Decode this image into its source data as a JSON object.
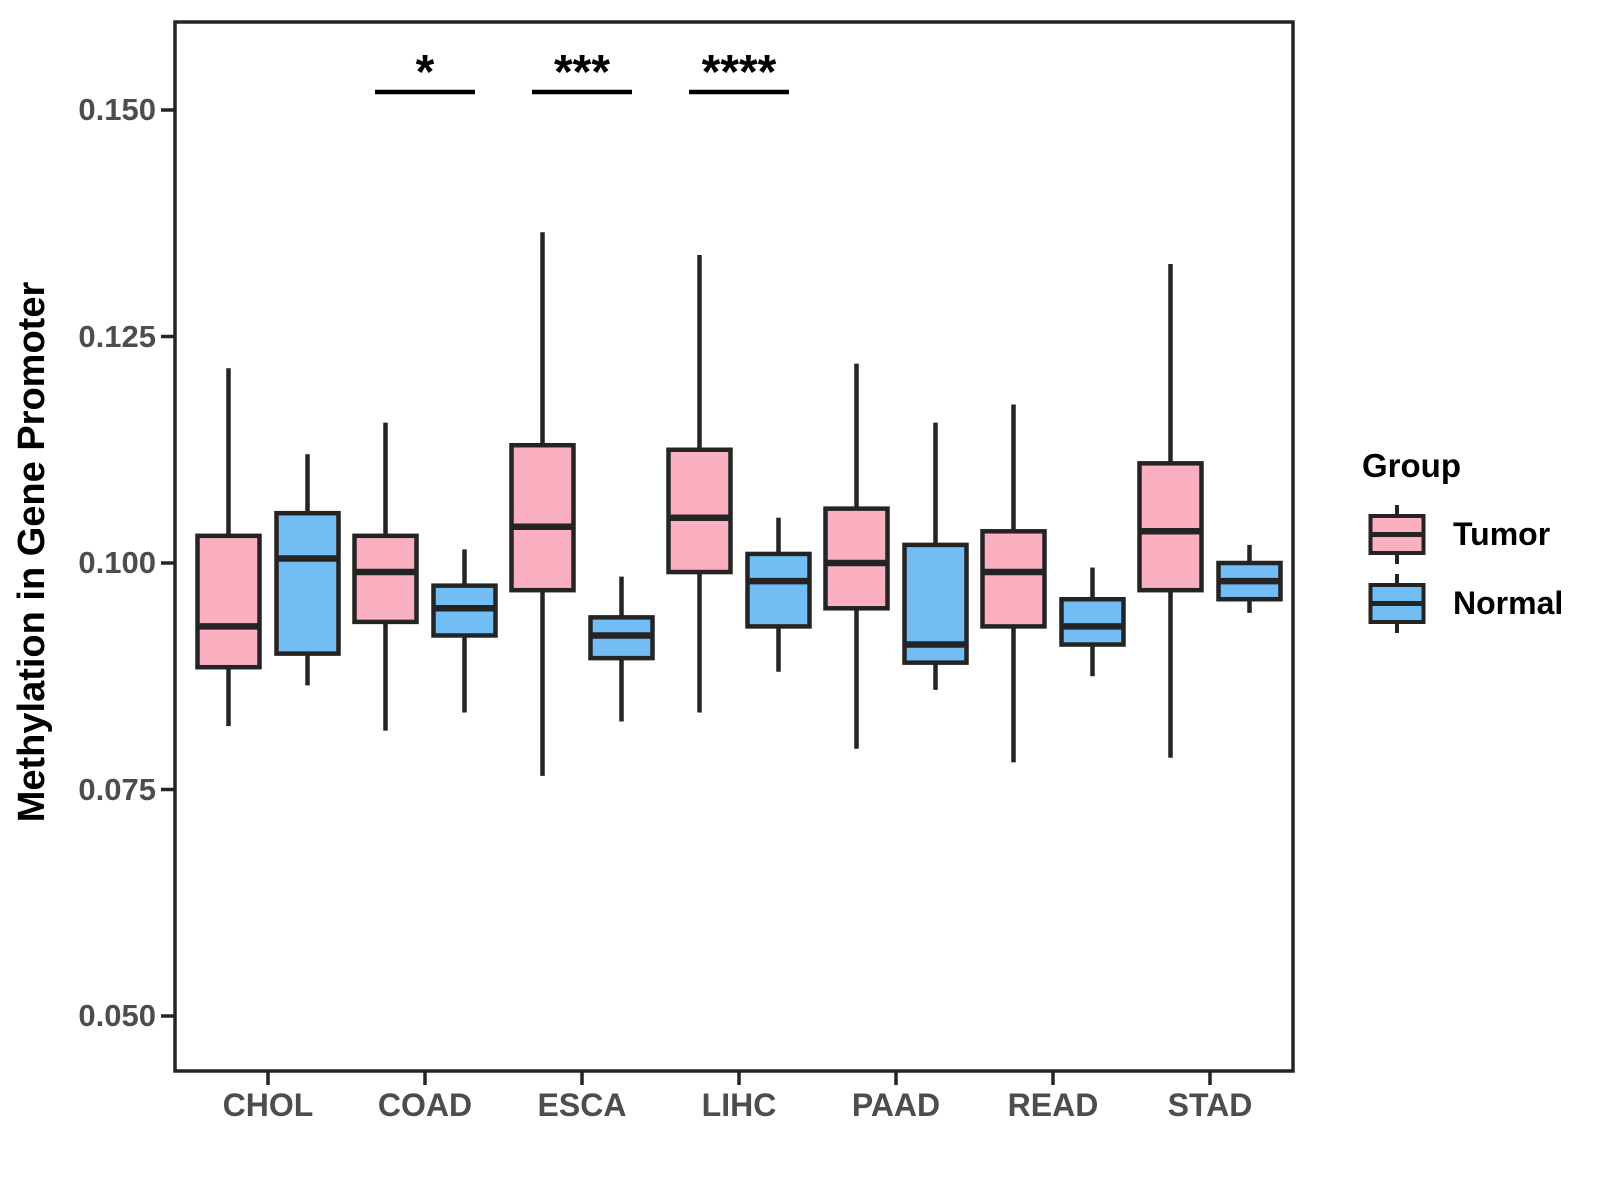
{
  "figure": {
    "background": "#ffffff",
    "stroke_color": "#242424",
    "axis_text_color": "#4d4d4d",
    "axis_title_color": "#000000"
  },
  "chart_data": {
    "type": "boxplot",
    "title": "",
    "xlabel": "",
    "ylabel": "Methylation in Gene Promoter",
    "grid": false,
    "legend_position": "right",
    "ylim": [
      0.044,
      0.16
    ],
    "y_ticks": [
      {
        "label": "0.150",
        "value": 0.15
      },
      {
        "label": "0.125",
        "value": 0.125
      },
      {
        "label": "0.100",
        "value": 0.1
      },
      {
        "label": "0.075",
        "value": 0.075
      },
      {
        "label": "0.050",
        "value": 0.05
      }
    ],
    "categories": [
      "CHOL",
      "COAD",
      "ESCA",
      "LIHC",
      "PAAD",
      "READ",
      "STAD"
    ],
    "series": [
      {
        "name": "Tumor",
        "fill": "#FBB0C2",
        "boxes": [
          {
            "category": "CHOL",
            "min": 0.082,
            "q1": 0.0885,
            "median": 0.093,
            "q3": 0.103,
            "max": 0.1215
          },
          {
            "category": "COAD",
            "min": 0.0815,
            "q1": 0.0935,
            "median": 0.099,
            "q3": 0.103,
            "max": 0.1155
          },
          {
            "category": "ESCA",
            "min": 0.0765,
            "q1": 0.097,
            "median": 0.104,
            "q3": 0.113,
            "max": 0.1365
          },
          {
            "category": "LIHC",
            "min": 0.0835,
            "q1": 0.099,
            "median": 0.105,
            "q3": 0.1125,
            "max": 0.134
          },
          {
            "category": "PAAD",
            "min": 0.0795,
            "q1": 0.095,
            "median": 0.1,
            "q3": 0.106,
            "max": 0.122
          },
          {
            "category": "READ",
            "min": 0.078,
            "q1": 0.093,
            "median": 0.099,
            "q3": 0.1035,
            "max": 0.1175
          },
          {
            "category": "STAD",
            "min": 0.0785,
            "q1": 0.097,
            "median": 0.1035,
            "q3": 0.111,
            "max": 0.133
          }
        ]
      },
      {
        "name": "Normal",
        "fill": "#72BEF4",
        "boxes": [
          {
            "category": "CHOL",
            "min": 0.0865,
            "q1": 0.09,
            "median": 0.1005,
            "q3": 0.1055,
            "max": 0.112
          },
          {
            "category": "COAD",
            "min": 0.0835,
            "q1": 0.092,
            "median": 0.095,
            "q3": 0.0975,
            "max": 0.1015
          },
          {
            "category": "ESCA",
            "min": 0.0825,
            "q1": 0.0895,
            "median": 0.092,
            "q3": 0.094,
            "max": 0.0985
          },
          {
            "category": "LIHC",
            "min": 0.088,
            "q1": 0.093,
            "median": 0.098,
            "q3": 0.101,
            "max": 0.105
          },
          {
            "category": "PAAD",
            "min": 0.086,
            "q1": 0.089,
            "median": 0.091,
            "q3": 0.102,
            "max": 0.1155
          },
          {
            "category": "READ",
            "min": 0.0875,
            "q1": 0.091,
            "median": 0.093,
            "q3": 0.096,
            "max": 0.0995
          },
          {
            "category": "STAD",
            "min": 0.0945,
            "q1": 0.096,
            "median": 0.098,
            "q3": 0.1,
            "max": 0.102
          }
        ]
      }
    ],
    "significance": [
      {
        "category": "COAD",
        "label": "*"
      },
      {
        "category": "ESCA",
        "label": "***"
      },
      {
        "category": "LIHC",
        "label": "****"
      }
    ],
    "legend": {
      "title": "Group",
      "items": [
        {
          "label": "Tumor",
          "fill": "#FBB0C2"
        },
        {
          "label": "Normal",
          "fill": "#72BEF4"
        }
      ]
    }
  }
}
